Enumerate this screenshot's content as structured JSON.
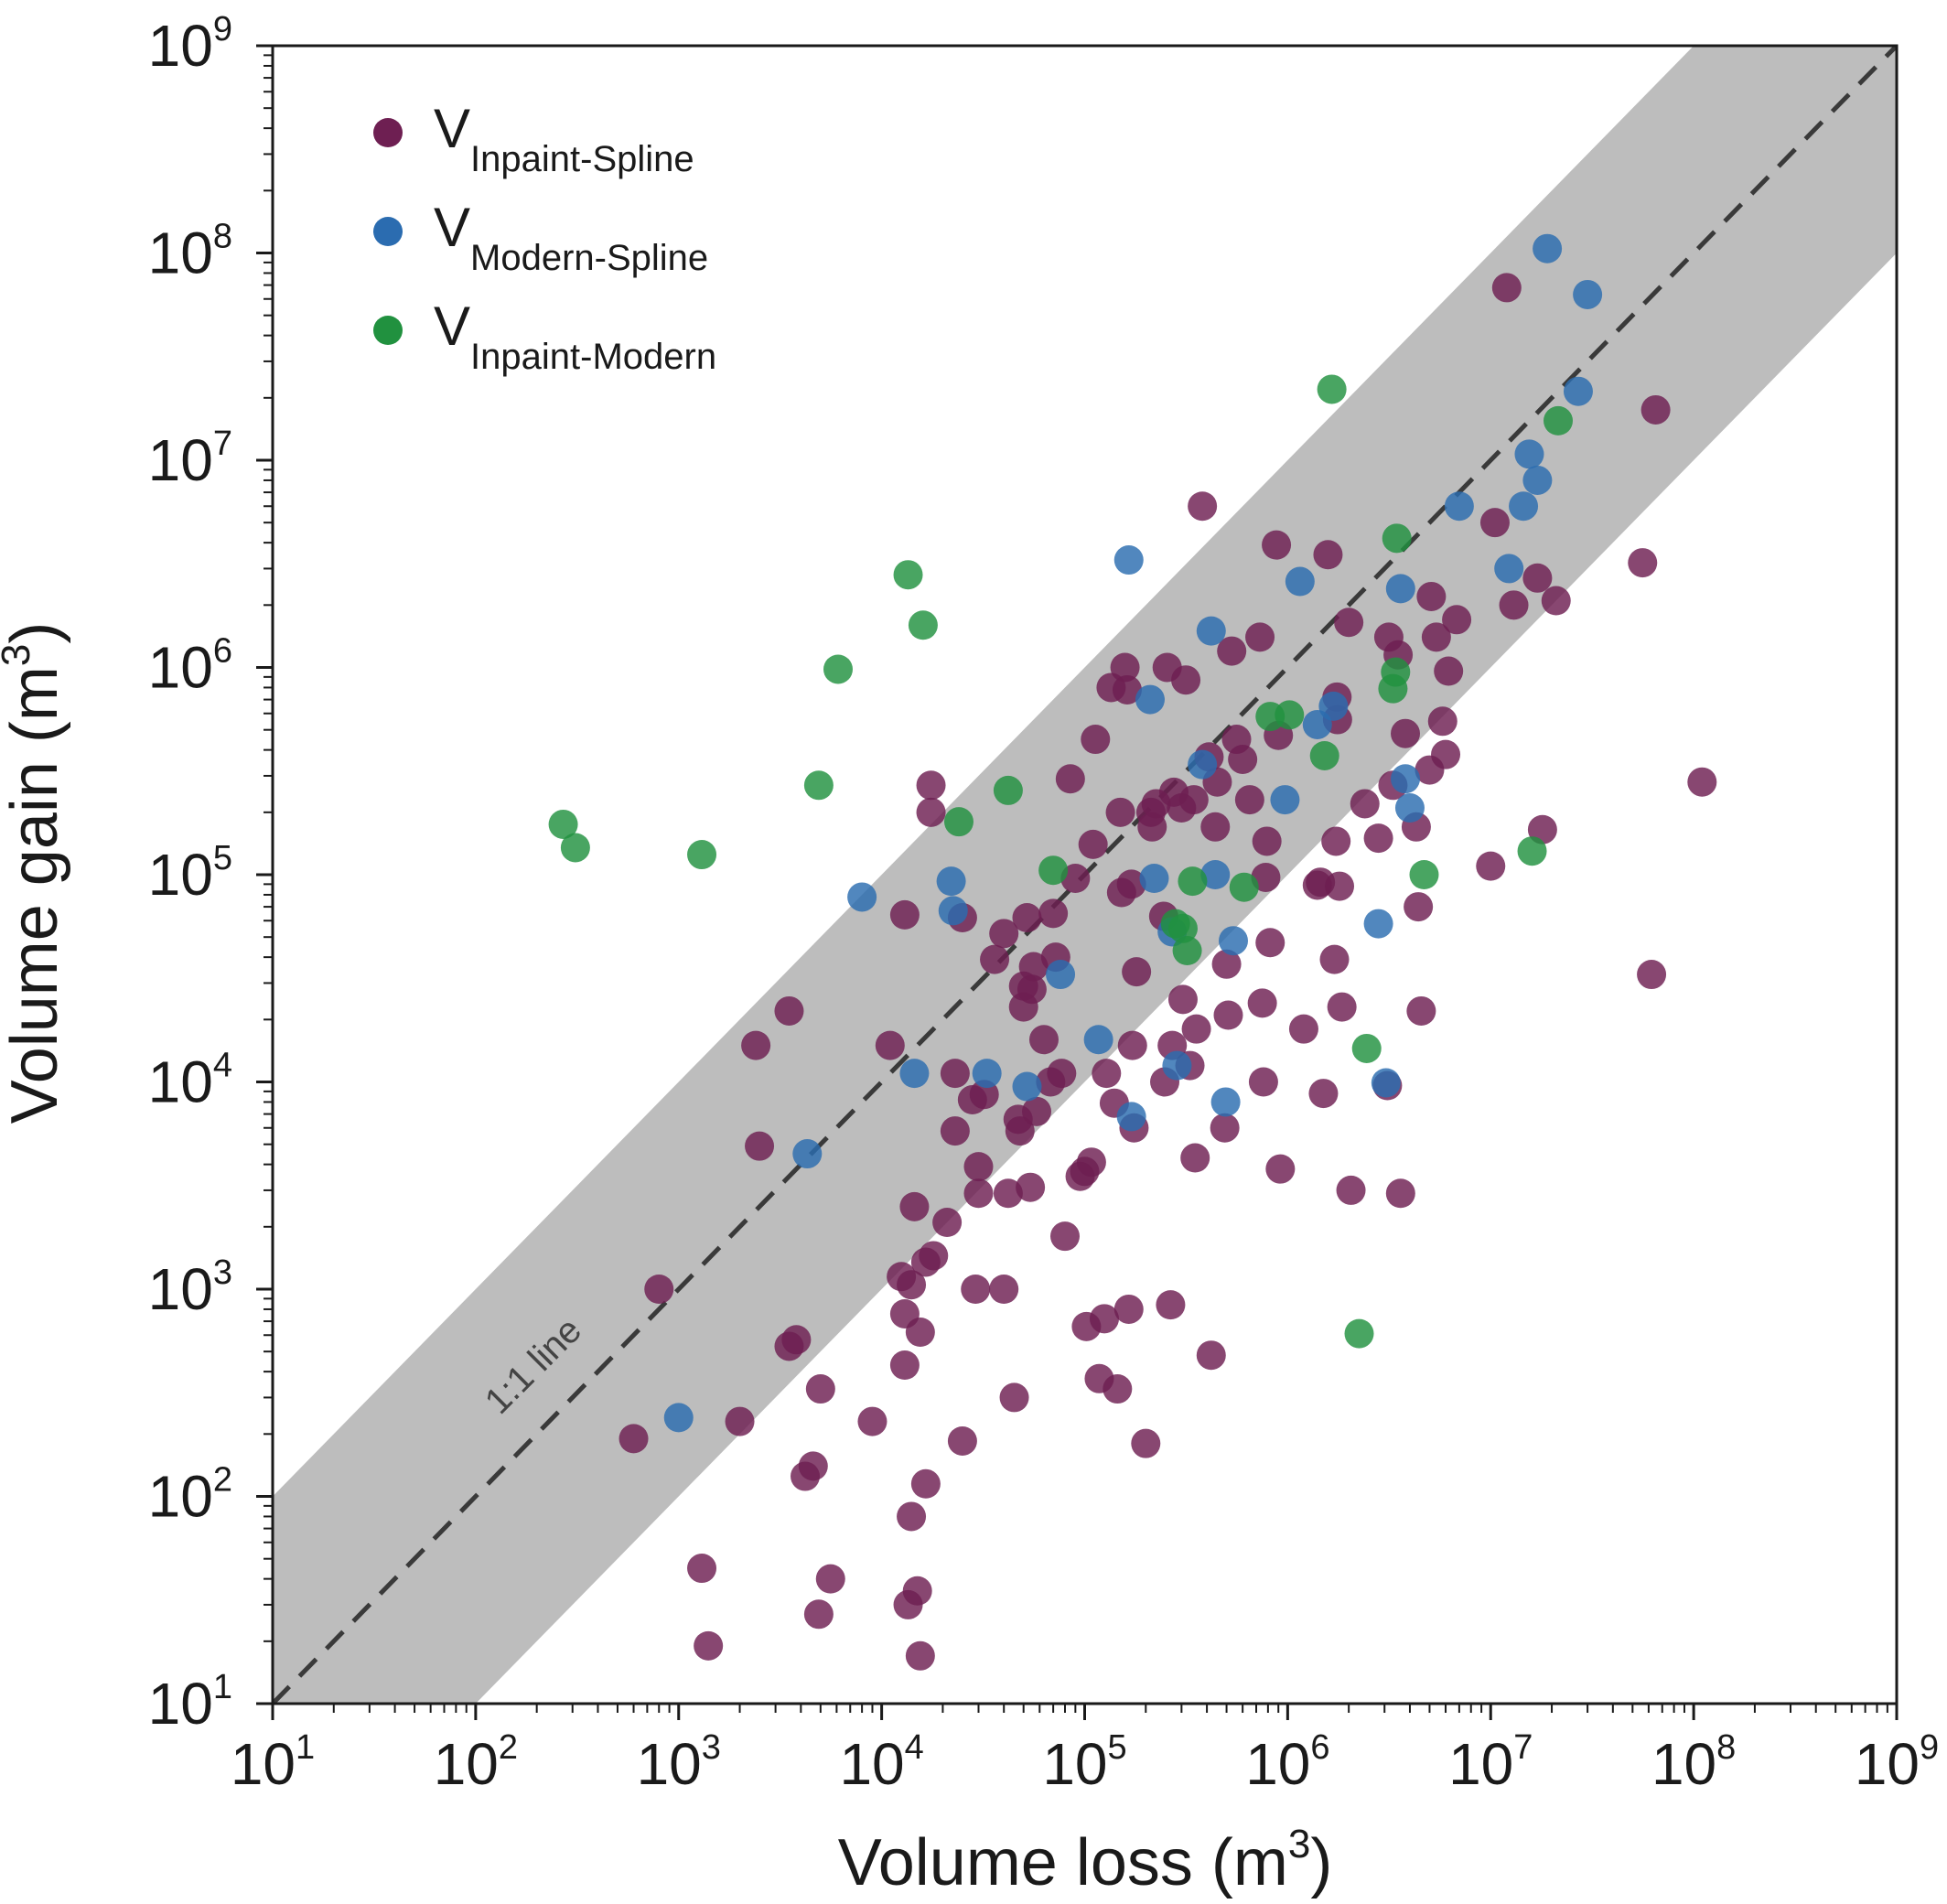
{
  "chart_data": {
    "type": "scatter",
    "xscale": "log",
    "yscale": "log",
    "xlim": [
      10,
      1000000000
    ],
    "ylim": [
      10,
      1000000000
    ],
    "xlabel": "Volume loss (m³)",
    "ylabel": "Volume gain (m³)",
    "ticks": [
      {
        "base": "10",
        "exp": "1",
        "value": 10
      },
      {
        "base": "10",
        "exp": "2",
        "value": 100
      },
      {
        "base": "10",
        "exp": "3",
        "value": 1000
      },
      {
        "base": "10",
        "exp": "4",
        "value": 10000
      },
      {
        "base": "10",
        "exp": "5",
        "value": 100000
      },
      {
        "base": "10",
        "exp": "6",
        "value": 1000000
      },
      {
        "base": "10",
        "exp": "7",
        "value": 10000000
      },
      {
        "base": "10",
        "exp": "8",
        "value": 100000000
      },
      {
        "base": "10",
        "exp": "9",
        "value": 1000000000
      }
    ],
    "reference_line": {
      "label": "1:1 line",
      "slope": 1
    },
    "band": {
      "factor": 10
    },
    "grid": false,
    "legend_position": "top-left",
    "series": [
      {
        "name": "Inpaint-Spline",
        "main": "V",
        "sub": "Inpaint-Spline",
        "color": "#6e1f52",
        "points": [
          [
            600,
            190
          ],
          [
            800,
            1000
          ],
          [
            1300,
            45
          ],
          [
            1400,
            19
          ],
          [
            2000,
            230
          ],
          [
            2400,
            15000
          ],
          [
            2500,
            4900
          ],
          [
            3500,
            22000
          ],
          [
            3500,
            530
          ],
          [
            3800,
            570
          ],
          [
            4200,
            125
          ],
          [
            4600,
            140
          ],
          [
            4900,
            27
          ],
          [
            5000,
            330
          ],
          [
            5600,
            40
          ],
          [
            9000,
            230
          ],
          [
            11000,
            15000
          ],
          [
            12500,
            1150
          ],
          [
            13000,
            64000
          ],
          [
            13000,
            760
          ],
          [
            13000,
            430
          ],
          [
            13500,
            30
          ],
          [
            14000,
            1050
          ],
          [
            14000,
            80
          ],
          [
            14500,
            2500
          ],
          [
            15000,
            35
          ],
          [
            15500,
            17
          ],
          [
            15500,
            620
          ],
          [
            16500,
            115
          ],
          [
            16500,
            1350
          ],
          [
            17500,
            270000
          ],
          [
            17500,
            200000
          ],
          [
            18000,
            1450
          ],
          [
            21000,
            2100
          ],
          [
            23000,
            11000
          ],
          [
            23000,
            5800
          ],
          [
            25000,
            62000
          ],
          [
            25000,
            185
          ],
          [
            28000,
            8200
          ],
          [
            29000,
            1000
          ],
          [
            30000,
            3900
          ],
          [
            30000,
            2900
          ],
          [
            32000,
            8700
          ],
          [
            36000,
            39000
          ],
          [
            40000,
            52000
          ],
          [
            40000,
            1000
          ],
          [
            42000,
            2900
          ],
          [
            45000,
            300
          ],
          [
            47000,
            6600
          ],
          [
            48000,
            5800
          ],
          [
            50000,
            23000
          ],
          [
            50000,
            29000
          ],
          [
            52000,
            62000
          ],
          [
            54000,
            3100
          ],
          [
            55000,
            28000
          ],
          [
            56000,
            36000
          ],
          [
            58000,
            7200
          ],
          [
            63000,
            16000
          ],
          [
            68000,
            10000
          ],
          [
            70000,
            65000
          ],
          [
            72000,
            40000
          ],
          [
            77000,
            11000
          ],
          [
            80000,
            1800
          ],
          [
            85000,
            290000
          ],
          [
            90000,
            96000
          ],
          [
            95000,
            3500
          ],
          [
            100000,
            3700
          ],
          [
            102000,
            660
          ],
          [
            108000,
            4100
          ],
          [
            110000,
            140000
          ],
          [
            113000,
            450000
          ],
          [
            118000,
            370
          ],
          [
            125000,
            720
          ],
          [
            128000,
            11000
          ],
          [
            135000,
            800000
          ],
          [
            140000,
            7900
          ],
          [
            145000,
            330
          ],
          [
            150000,
            200000
          ],
          [
            152000,
            82000
          ],
          [
            158000,
            1000000
          ],
          [
            162000,
            780000
          ],
          [
            165000,
            800
          ],
          [
            170000,
            90000
          ],
          [
            172000,
            15000
          ],
          [
            175000,
            6000
          ],
          [
            180000,
            34000
          ],
          [
            200000,
            180
          ],
          [
            212000,
            200000
          ],
          [
            215000,
            170000
          ],
          [
            225000,
            220000
          ],
          [
            245000,
            63000
          ],
          [
            248000,
            10000
          ],
          [
            255000,
            1000000
          ],
          [
            265000,
            840
          ],
          [
            270000,
            15000
          ],
          [
            275000,
            250000
          ],
          [
            300000,
            210000
          ],
          [
            305000,
            25000
          ],
          [
            315000,
            870000
          ],
          [
            330000,
            12000
          ],
          [
            345000,
            230000
          ],
          [
            350000,
            4300
          ],
          [
            355000,
            18000
          ],
          [
            380000,
            6000000
          ],
          [
            410000,
            370000
          ],
          [
            420000,
            480
          ],
          [
            440000,
            170000
          ],
          [
            450000,
            280000
          ],
          [
            490000,
            6000
          ],
          [
            500000,
            37000
          ],
          [
            510000,
            21000
          ],
          [
            530000,
            1200000
          ],
          [
            560000,
            450000
          ],
          [
            600000,
            360000
          ],
          [
            650000,
            230000
          ],
          [
            730000,
            1400000
          ],
          [
            750000,
            24000
          ],
          [
            760000,
            10000
          ],
          [
            780000,
            97000
          ],
          [
            790000,
            145000
          ],
          [
            820000,
            47000
          ],
          [
            880000,
            3900000
          ],
          [
            900000,
            470000
          ],
          [
            920000,
            3800
          ],
          [
            1200000,
            18000
          ],
          [
            1400000,
            89000
          ],
          [
            1450000,
            92000
          ],
          [
            1500000,
            8800
          ],
          [
            1580000,
            3500000
          ],
          [
            1700000,
            39000
          ],
          [
            1730000,
            145000
          ],
          [
            1750000,
            720000
          ],
          [
            1760000,
            560000
          ],
          [
            1800000,
            88000
          ],
          [
            1850000,
            23000
          ],
          [
            2000000,
            1650000
          ],
          [
            2050000,
            3000
          ],
          [
            2400000,
            220000
          ],
          [
            2800000,
            150000
          ],
          [
            3100000,
            9600
          ],
          [
            3150000,
            1400000
          ],
          [
            3300000,
            270000
          ],
          [
            3500000,
            1150000
          ],
          [
            3600000,
            2900
          ],
          [
            3800000,
            480000
          ],
          [
            4300000,
            170000
          ],
          [
            4400000,
            70000
          ],
          [
            4550000,
            22000
          ],
          [
            5000000,
            320000
          ],
          [
            5100000,
            2200000
          ],
          [
            5400000,
            1400000
          ],
          [
            5800000,
            550000
          ],
          [
            6000000,
            380000
          ],
          [
            6200000,
            960000
          ],
          [
            6800000,
            1700000
          ],
          [
            10000000,
            110000
          ],
          [
            10500000,
            5000000
          ],
          [
            12000000,
            68000000
          ],
          [
            13000000,
            2000000
          ],
          [
            17000000,
            2700000
          ],
          [
            18000000,
            165000
          ],
          [
            21000000,
            2100000
          ],
          [
            56000000,
            3200000
          ],
          [
            62000000,
            33000
          ],
          [
            65000000,
            17500000
          ],
          [
            110000000,
            280000
          ]
        ]
      },
      {
        "name": "Modern-Spline",
        "main": "V",
        "sub": "Modern-Spline",
        "color": "#2b6cb0",
        "points": [
          [
            1000,
            240
          ],
          [
            4300,
            4500
          ],
          [
            8000,
            78000
          ],
          [
            14500,
            11000
          ],
          [
            22000,
            93000
          ],
          [
            22500,
            67000
          ],
          [
            33000,
            11000
          ],
          [
            52000,
            9500
          ],
          [
            76000,
            33000
          ],
          [
            117000,
            16000
          ],
          [
            165000,
            3300000
          ],
          [
            170000,
            6800
          ],
          [
            210000,
            700000
          ],
          [
            220000,
            96000
          ],
          [
            270000,
            53000
          ],
          [
            285000,
            12000
          ],
          [
            380000,
            340000
          ],
          [
            420000,
            1500000
          ],
          [
            440000,
            100000
          ],
          [
            495000,
            8000
          ],
          [
            540000,
            48000
          ],
          [
            970000,
            230000
          ],
          [
            1150000,
            2600000
          ],
          [
            1400000,
            530000
          ],
          [
            1680000,
            650000
          ],
          [
            2800000,
            58000
          ],
          [
            3050000,
            9900
          ],
          [
            3600000,
            2400000
          ],
          [
            3800000,
            290000
          ],
          [
            4000000,
            210000
          ],
          [
            7000000,
            6000000
          ],
          [
            12300000,
            3000000
          ],
          [
            14500000,
            6000000
          ],
          [
            15500000,
            10700000
          ],
          [
            17000000,
            8000000
          ],
          [
            19000000,
            105000000
          ],
          [
            27000000,
            21500000
          ],
          [
            30000000,
            63000000
          ]
        ]
      },
      {
        "name": "Inpaint-Modern",
        "main": "V",
        "sub": "Inpaint-Modern",
        "color": "#21913f",
        "points": [
          [
            270,
            175000
          ],
          [
            310,
            135000
          ],
          [
            1300,
            125000
          ],
          [
            4900,
            270000
          ],
          [
            6100,
            980000
          ],
          [
            13500,
            2800000
          ],
          [
            16000,
            1600000
          ],
          [
            24000,
            180000
          ],
          [
            42000,
            255000
          ],
          [
            70000,
            105000
          ],
          [
            280000,
            58000
          ],
          [
            305000,
            55000
          ],
          [
            320000,
            43000
          ],
          [
            340000,
            93000
          ],
          [
            610000,
            87000
          ],
          [
            820000,
            580000
          ],
          [
            1020000,
            590000
          ],
          [
            1520000,
            375000
          ],
          [
            1650000,
            22000000
          ],
          [
            2250000,
            610
          ],
          [
            2450000,
            14500
          ],
          [
            3300000,
            790000
          ],
          [
            3400000,
            950000
          ],
          [
            3450000,
            4200000
          ],
          [
            4700000,
            100000
          ],
          [
            16000000,
            130000
          ],
          [
            21500000,
            15500000
          ]
        ]
      }
    ]
  }
}
